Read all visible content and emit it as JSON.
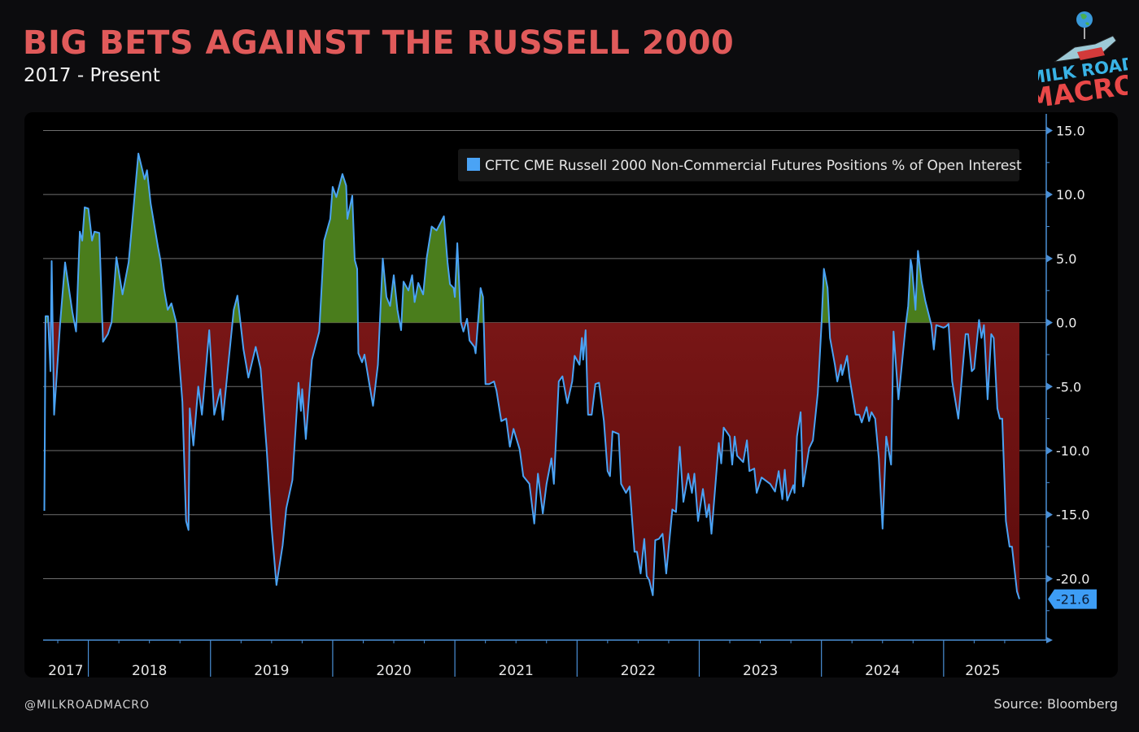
{
  "header": {
    "title": "BIG BETS AGAINST THE RUSSELL 2000",
    "subtitle": "2017 - Present"
  },
  "logo": {
    "line1": "MILK ROAD",
    "line2": "MACRO"
  },
  "footer": {
    "handle": "@MILKROADMACRO",
    "source": "Source: Bloomberg"
  },
  "colors": {
    "title": "#e05a5a",
    "line": "#4aa3f5",
    "positive_fill": "#4a7d1c",
    "negative_fill": "#8a1c1c",
    "axis": "#4a8fd6",
    "background": "#000000"
  },
  "chart_data": {
    "type": "area",
    "title": "",
    "xlabel": "",
    "ylabel": "",
    "legend": {
      "label": "CFTC CME Russell 2000 Non-Commercial Futures Positions % of Open Interest",
      "placement": "top-right"
    },
    "x_tick_labels": [
      "2017",
      "2018",
      "2019",
      "2020",
      "2021",
      "2022",
      "2023",
      "2024",
      "2025"
    ],
    "y_ticks": [
      15.0,
      10.0,
      5.0,
      0.0,
      -5.0,
      -10.0,
      -15.0,
      -20.0
    ],
    "y_tick_labels": [
      "15.0",
      "10.0",
      "5.0",
      "0.0",
      "-5.0",
      "-10.0",
      "-15.0",
      "-20.0"
    ],
    "ylim": [
      -24.8,
      16.3
    ],
    "xlim": [
      2017.63,
      2025.84
    ],
    "grid": true,
    "y_axis_side": "right",
    "last_value": -21.6,
    "last_value_label": "-21.6",
    "series": [
      {
        "name": "CFTC CME Russell 2000 Non-Commercial Futures Positions % of Open Interest",
        "points": [
          [
            2017.64,
            -14.7
          ],
          [
            2017.65,
            0.5
          ],
          [
            2017.67,
            0.5
          ],
          [
            2017.69,
            -3.8
          ],
          [
            2017.7,
            4.8
          ],
          [
            2017.72,
            -7.2
          ],
          [
            2017.77,
            0
          ],
          [
            2017.81,
            4.7
          ],
          [
            2017.87,
            0.8
          ],
          [
            2017.9,
            -0.7
          ],
          [
            2017.93,
            7.1
          ],
          [
            2017.95,
            6.4
          ],
          [
            2017.97,
            9.0
          ],
          [
            2018.0,
            8.9
          ],
          [
            2018.03,
            6.4
          ],
          [
            2018.05,
            7.1
          ],
          [
            2018.09,
            7.0
          ],
          [
            2018.12,
            -1.5
          ],
          [
            2018.16,
            -0.9
          ],
          [
            2018.19,
            0
          ],
          [
            2018.23,
            5.1
          ],
          [
            2018.28,
            2.2
          ],
          [
            2018.33,
            4.7
          ],
          [
            2018.41,
            13.2
          ],
          [
            2018.46,
            11.2
          ],
          [
            2018.48,
            11.9
          ],
          [
            2018.51,
            9.3
          ],
          [
            2018.57,
            5.9
          ],
          [
            2018.59,
            4.9
          ],
          [
            2018.62,
            2.6
          ],
          [
            2018.65,
            1.0
          ],
          [
            2018.68,
            1.5
          ],
          [
            2018.72,
            0
          ],
          [
            2018.77,
            -6.2
          ],
          [
            2018.8,
            -15.5
          ],
          [
            2018.82,
            -16.2
          ],
          [
            2018.83,
            -6.7
          ],
          [
            2018.86,
            -9.6
          ],
          [
            2018.9,
            -5.0
          ],
          [
            2018.93,
            -7.2
          ],
          [
            2018.99,
            -0.6
          ],
          [
            2019.03,
            -7.2
          ],
          [
            2019.08,
            -5.2
          ],
          [
            2019.1,
            -7.6
          ],
          [
            2019.19,
            1.0
          ],
          [
            2019.22,
            2.1
          ],
          [
            2019.27,
            -2.1
          ],
          [
            2019.31,
            -4.3
          ],
          [
            2019.37,
            -1.9
          ],
          [
            2019.41,
            -3.6
          ],
          [
            2019.46,
            -9.9
          ],
          [
            2019.5,
            -16.0
          ],
          [
            2019.54,
            -20.5
          ],
          [
            2019.59,
            -17.4
          ],
          [
            2019.62,
            -14.5
          ],
          [
            2019.67,
            -12.3
          ],
          [
            2019.72,
            -4.7
          ],
          [
            2019.74,
            -6.9
          ],
          [
            2019.75,
            -5.2
          ],
          [
            2019.78,
            -9.1
          ],
          [
            2019.83,
            -2.9
          ],
          [
            2019.89,
            -0.7
          ],
          [
            2019.93,
            6.4
          ],
          [
            2019.98,
            8.1
          ],
          [
            2020.0,
            10.6
          ],
          [
            2020.03,
            9.8
          ],
          [
            2020.08,
            11.6
          ],
          [
            2020.11,
            10.7
          ],
          [
            2020.12,
            8.1
          ],
          [
            2020.16,
            9.9
          ],
          [
            2020.18,
            4.9
          ],
          [
            2020.2,
            4.2
          ],
          [
            2020.21,
            -2.4
          ],
          [
            2020.24,
            -3.1
          ],
          [
            2020.26,
            -2.5
          ],
          [
            2020.3,
            -4.8
          ],
          [
            2020.33,
            -6.5
          ],
          [
            2020.37,
            -3.3
          ],
          [
            2020.41,
            5.0
          ],
          [
            2020.44,
            2.0
          ],
          [
            2020.47,
            1.3
          ],
          [
            2020.5,
            3.7
          ],
          [
            2020.53,
            1.0
          ],
          [
            2020.56,
            -0.6
          ],
          [
            2020.58,
            3.2
          ],
          [
            2020.62,
            2.5
          ],
          [
            2020.65,
            3.7
          ],
          [
            2020.67,
            1.6
          ],
          [
            2020.7,
            3.1
          ],
          [
            2020.74,
            2.2
          ],
          [
            2020.77,
            5.1
          ],
          [
            2020.81,
            7.5
          ],
          [
            2020.85,
            7.2
          ],
          [
            2020.91,
            8.3
          ],
          [
            2020.94,
            4.7
          ],
          [
            2020.96,
            3.0
          ],
          [
            2020.99,
            2.7
          ],
          [
            2021.0,
            2.0
          ],
          [
            2021.02,
            6.2
          ],
          [
            2021.05,
            0
          ],
          [
            2021.07,
            -0.7
          ],
          [
            2021.1,
            0.3
          ],
          [
            2021.12,
            -1.4
          ],
          [
            2021.16,
            -1.9
          ],
          [
            2021.17,
            -2.4
          ],
          [
            2021.21,
            2.7
          ],
          [
            2021.23,
            2.0
          ],
          [
            2021.25,
            -4.8
          ],
          [
            2021.28,
            -4.8
          ],
          [
            2021.32,
            -4.6
          ],
          [
            2021.34,
            -5.3
          ],
          [
            2021.38,
            -7.7
          ],
          [
            2021.42,
            -7.5
          ],
          [
            2021.45,
            -9.7
          ],
          [
            2021.48,
            -8.3
          ],
          [
            2021.53,
            -9.9
          ],
          [
            2021.56,
            -12.0
          ],
          [
            2021.61,
            -12.6
          ],
          [
            2021.65,
            -15.7
          ],
          [
            2021.68,
            -11.8
          ],
          [
            2021.72,
            -14.9
          ],
          [
            2021.75,
            -12.6
          ],
          [
            2021.79,
            -10.6
          ],
          [
            2021.81,
            -12.6
          ],
          [
            2021.85,
            -4.6
          ],
          [
            2021.88,
            -4.2
          ],
          [
            2021.92,
            -6.3
          ],
          [
            2021.96,
            -4.6
          ],
          [
            2021.98,
            -2.6
          ],
          [
            2022.02,
            -3.3
          ],
          [
            2022.04,
            -1.2
          ],
          [
            2022.05,
            -2.9
          ],
          [
            2022.07,
            -0.6
          ],
          [
            2022.09,
            -7.2
          ],
          [
            2022.12,
            -7.2
          ],
          [
            2022.15,
            -4.8
          ],
          [
            2022.18,
            -4.7
          ],
          [
            2022.22,
            -7.7
          ],
          [
            2022.25,
            -11.6
          ],
          [
            2022.27,
            -12.0
          ],
          [
            2022.29,
            -8.5
          ],
          [
            2022.34,
            -8.7
          ],
          [
            2022.36,
            -12.6
          ],
          [
            2022.4,
            -13.3
          ],
          [
            2022.43,
            -12.8
          ],
          [
            2022.47,
            -17.9
          ],
          [
            2022.49,
            -17.9
          ],
          [
            2022.52,
            -19.6
          ],
          [
            2022.55,
            -16.9
          ],
          [
            2022.57,
            -19.8
          ],
          [
            2022.59,
            -20.1
          ],
          [
            2022.62,
            -21.3
          ],
          [
            2022.64,
            -17.0
          ],
          [
            2022.67,
            -16.9
          ],
          [
            2022.7,
            -16.5
          ],
          [
            2022.73,
            -19.6
          ],
          [
            2022.78,
            -14.6
          ],
          [
            2022.81,
            -14.8
          ],
          [
            2022.84,
            -9.7
          ],
          [
            2022.87,
            -14.0
          ],
          [
            2022.91,
            -11.8
          ],
          [
            2022.94,
            -13.3
          ],
          [
            2022.96,
            -11.8
          ],
          [
            2022.99,
            -15.5
          ],
          [
            2023.03,
            -13.0
          ],
          [
            2023.06,
            -15.2
          ],
          [
            2023.08,
            -14.2
          ],
          [
            2023.1,
            -16.5
          ],
          [
            2023.16,
            -9.4
          ],
          [
            2023.18,
            -11.0
          ],
          [
            2023.2,
            -8.2
          ],
          [
            2023.25,
            -8.9
          ],
          [
            2023.27,
            -11.1
          ],
          [
            2023.29,
            -8.9
          ],
          [
            2023.31,
            -10.4
          ],
          [
            2023.36,
            -10.9
          ],
          [
            2023.39,
            -9.2
          ],
          [
            2023.41,
            -11.6
          ],
          [
            2023.45,
            -11.4
          ],
          [
            2023.47,
            -13.3
          ],
          [
            2023.51,
            -12.1
          ],
          [
            2023.58,
            -12.6
          ],
          [
            2023.62,
            -13.2
          ],
          [
            2023.65,
            -11.6
          ],
          [
            2023.68,
            -13.8
          ],
          [
            2023.7,
            -11.5
          ],
          [
            2023.72,
            -13.9
          ],
          [
            2023.77,
            -12.7
          ],
          [
            2023.78,
            -13.3
          ],
          [
            2023.8,
            -8.9
          ],
          [
            2023.83,
            -7.0
          ],
          [
            2023.85,
            -12.8
          ],
          [
            2023.9,
            -9.8
          ],
          [
            2023.93,
            -9.2
          ],
          [
            2023.97,
            -5.5
          ],
          [
            2024.0,
            -0.2
          ],
          [
            2024.02,
            4.2
          ],
          [
            2024.05,
            2.7
          ],
          [
            2024.07,
            -1.2
          ],
          [
            2024.11,
            -3.3
          ],
          [
            2024.13,
            -4.6
          ],
          [
            2024.16,
            -3.3
          ],
          [
            2024.17,
            -4.1
          ],
          [
            2024.21,
            -2.6
          ],
          [
            2024.23,
            -4.3
          ],
          [
            2024.28,
            -7.2
          ],
          [
            2024.31,
            -7.2
          ],
          [
            2024.33,
            -7.8
          ],
          [
            2024.37,
            -6.6
          ],
          [
            2024.39,
            -7.7
          ],
          [
            2024.41,
            -7.0
          ],
          [
            2024.44,
            -7.5
          ],
          [
            2024.47,
            -10.6
          ],
          [
            2024.5,
            -16.1
          ],
          [
            2024.53,
            -8.9
          ],
          [
            2024.57,
            -11.1
          ],
          [
            2024.59,
            -0.7
          ],
          [
            2024.63,
            -6.0
          ],
          [
            2024.69,
            -0.2
          ],
          [
            2024.71,
            1.3
          ],
          [
            2024.73,
            4.9
          ],
          [
            2024.74,
            4.4
          ],
          [
            2024.77,
            1.0
          ],
          [
            2024.79,
            5.6
          ],
          [
            2024.82,
            3.2
          ],
          [
            2024.85,
            1.7
          ],
          [
            2024.9,
            -0.2
          ],
          [
            2024.92,
            -2.1
          ],
          [
            2024.94,
            -0.2
          ],
          [
            2025.0,
            -0.4
          ],
          [
            2025.02,
            -0.3
          ],
          [
            2025.04,
            -0.1
          ],
          [
            2025.07,
            -4.6
          ],
          [
            2025.12,
            -7.5
          ],
          [
            2025.18,
            -0.9
          ],
          [
            2025.2,
            -0.9
          ],
          [
            2025.23,
            -3.8
          ],
          [
            2025.25,
            -3.6
          ],
          [
            2025.29,
            0.2
          ],
          [
            2025.31,
            -1.2
          ],
          [
            2025.33,
            -0.2
          ],
          [
            2025.36,
            -6.0
          ],
          [
            2025.39,
            -0.9
          ],
          [
            2025.41,
            -1.2
          ],
          [
            2025.44,
            -6.7
          ],
          [
            2025.46,
            -7.5
          ],
          [
            2025.48,
            -7.5
          ],
          [
            2025.51,
            -15.5
          ],
          [
            2025.54,
            -17.5
          ],
          [
            2025.56,
            -17.5
          ],
          [
            2025.6,
            -21.0
          ],
          [
            2025.62,
            -21.6
          ]
        ]
      }
    ]
  }
}
